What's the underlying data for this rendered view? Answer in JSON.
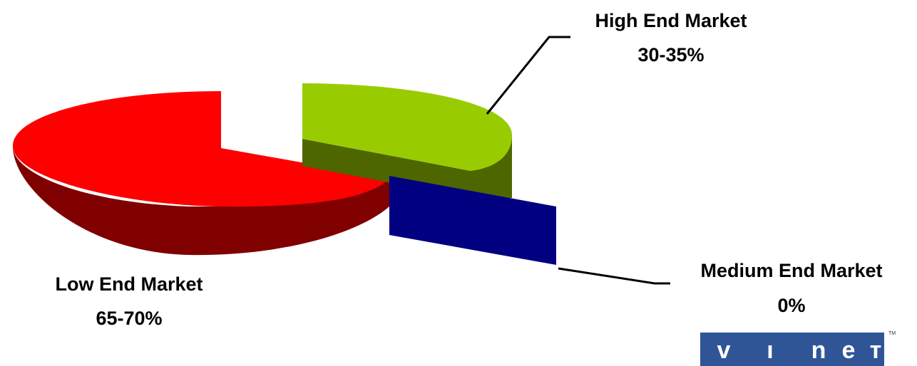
{
  "chart_data": {
    "type": "pie",
    "title": "",
    "style": "3d-exploded",
    "slices": [
      {
        "label": "Low End Market",
        "value_text": "65-70%",
        "value": 67.5,
        "color": "#ff0000",
        "side_color": "#800000"
      },
      {
        "label": "High End Market",
        "value_text": "30-35%",
        "value": 32.5,
        "color": "#99cc00",
        "side_color": "#4d6600"
      },
      {
        "label": "Medium End Market",
        "value_text": "0%",
        "value": 0,
        "color": "#000080",
        "side_color": "#000080"
      }
    ]
  },
  "logo": {
    "text": "vinet",
    "trademark": "TM",
    "color": "#2f5597"
  }
}
